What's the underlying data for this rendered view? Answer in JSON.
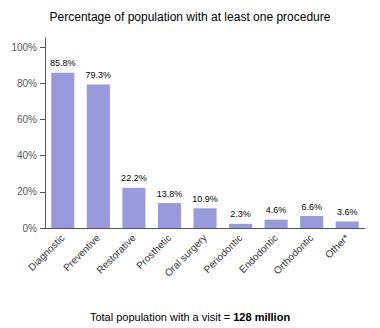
{
  "chart_data": {
    "type": "bar",
    "title": "Percentage of population with at least one procedure",
    "categories": [
      "Diagnostic",
      "Preventive",
      "Restorative",
      "Prosthetic",
      "Oral surgery",
      "Periodontic",
      "Endodontic",
      "Orthodontic",
      "Other*"
    ],
    "values": [
      85.8,
      79.3,
      22.2,
      13.8,
      10.9,
      2.3,
      4.6,
      6.6,
      3.6
    ],
    "value_labels": [
      "85.8%",
      "79.3%",
      "22.2%",
      "13.8%",
      "10.9%",
      "2.3%",
      "4.6%",
      "6.6%",
      "3.6%"
    ],
    "data_labels": true,
    "color": "#9999dd",
    "ylim": [
      0,
      105
    ],
    "yticks": [
      {
        "value": 0,
        "label": "0%"
      },
      {
        "value": 20,
        "label": "20%"
      },
      {
        "value": 40,
        "label": "40%"
      },
      {
        "value": 60,
        "label": "60%"
      },
      {
        "value": 80,
        "label": "80%"
      },
      {
        "value": 100,
        "label": "100%"
      }
    ],
    "grid": false,
    "annotations": [
      "Total population with a visit = ",
      "128 million"
    ]
  }
}
